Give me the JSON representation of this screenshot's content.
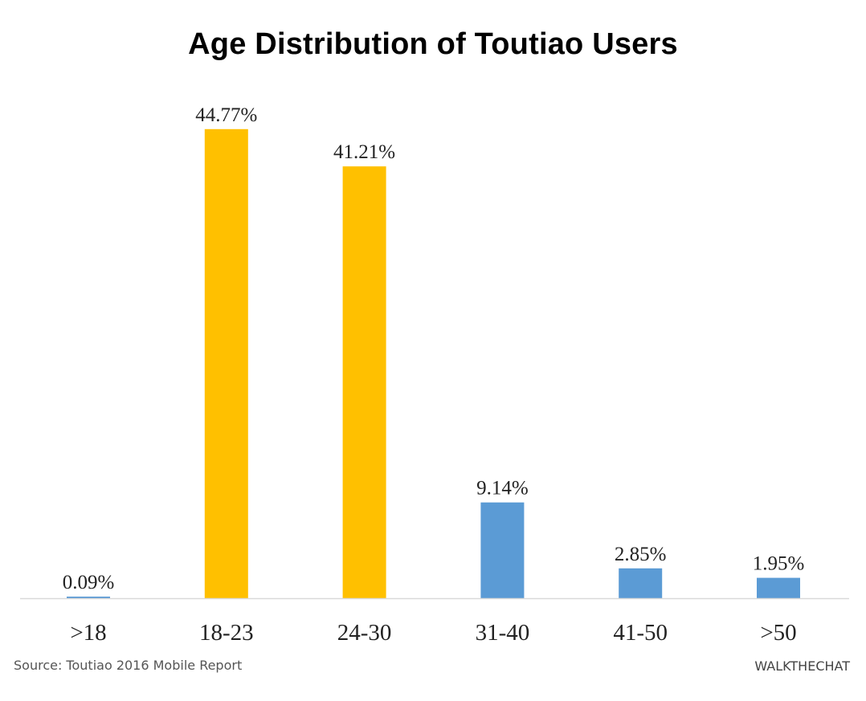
{
  "chart_data": {
    "type": "bar",
    "title": "Age Distribution of Toutiao Users",
    "categories": [
      ">18",
      "18-23",
      "24-30",
      "31-40",
      "41-50",
      ">50"
    ],
    "values": [
      0.09,
      44.77,
      41.21,
      9.14,
      2.85,
      1.95
    ],
    "data_labels": [
      "0.09%",
      "44.77%",
      "41.21%",
      "9.14%",
      "2.85%",
      "1.95%"
    ],
    "bar_colors": [
      "#5b9bd5",
      "#ffc000",
      "#ffc000",
      "#5b9bd5",
      "#5b9bd5",
      "#5b9bd5"
    ],
    "ylim": [
      0,
      50
    ],
    "unit": "%",
    "xlabel": "",
    "ylabel": "",
    "grid": false,
    "legend": "none"
  },
  "footer": {
    "source": "Source: Toutiao 2016 Mobile Report",
    "brand": "WALKTHECHAT"
  },
  "colors": {
    "highlight": "#ffc000",
    "base": "#5b9bd5",
    "axis": "#d9d9d9"
  }
}
